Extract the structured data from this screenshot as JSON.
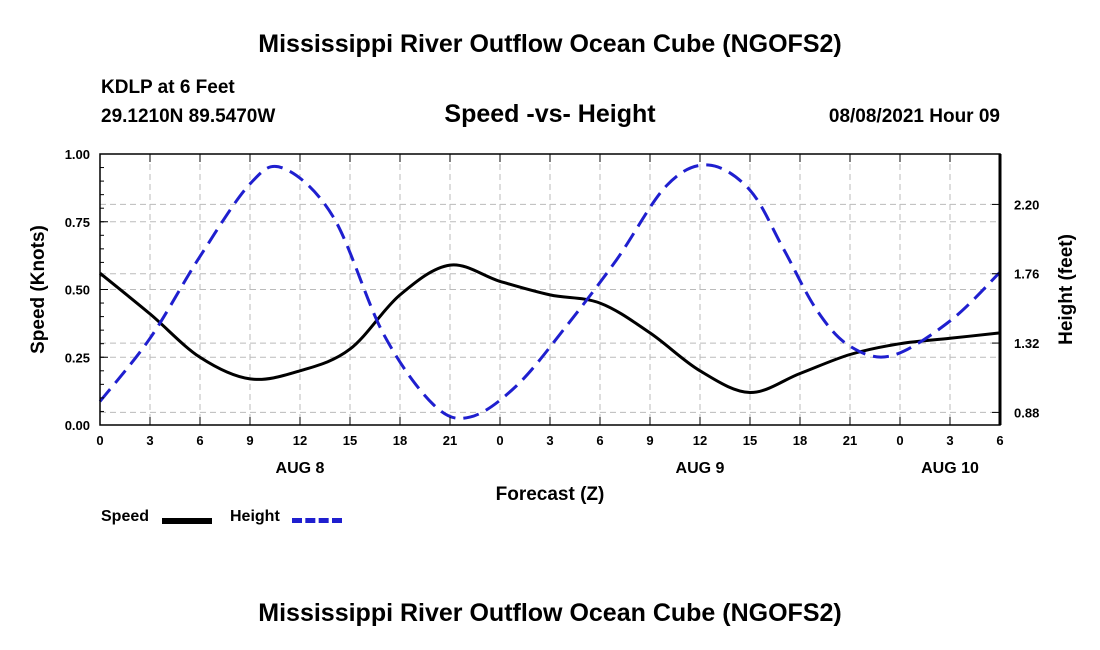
{
  "page_title": "Mississippi River Outflow Ocean Cube (NGOFS2)",
  "station": "KDLP at 6 Feet",
  "coords": "29.1210N  89.5470W",
  "datetime": "08/08/2021 Hour 09",
  "legend": {
    "speed": "Speed",
    "height": "Height"
  },
  "colors": {
    "speed": "#000000",
    "height": "#1f1fcf",
    "grid": "#bbbbbb"
  },
  "chart_data": {
    "type": "line",
    "title": "Speed -vs- Height",
    "xlabel": "Forecast (Z)",
    "ylabel": "Speed (Knots)",
    "y2label": "Height (feet)",
    "x_unit": "hours from 00Z Aug 8",
    "xlim": [
      0,
      54
    ],
    "ylim": [
      0,
      1
    ],
    "y2lim": [
      0.8,
      2.52
    ],
    "x_ticks": [
      0,
      3,
      6,
      9,
      12,
      15,
      18,
      21,
      24,
      27,
      30,
      33,
      36,
      39,
      42,
      45,
      48,
      51,
      54
    ],
    "x_tick_labels": [
      "0",
      "3",
      "6",
      "9",
      "12",
      "15",
      "18",
      "21",
      "0",
      "3",
      "6",
      "9",
      "12",
      "15",
      "18",
      "21",
      "0",
      "3",
      "6"
    ],
    "y_ticks": [
      0,
      0.25,
      0.5,
      0.75,
      1.0
    ],
    "y_tick_labels": [
      "0.00",
      "0.25",
      "0.50",
      "0.75",
      "1.00"
    ],
    "y2_ticks": [
      0.88,
      1.32,
      1.76,
      2.2
    ],
    "y2_tick_labels": [
      "0.88",
      "1.32",
      "1.76",
      "2.20"
    ],
    "day_labels": [
      {
        "x": 12,
        "label": "AUG 8"
      },
      {
        "x": 36,
        "label": "AUG 9"
      },
      {
        "x": 51,
        "label": "AUG 10"
      }
    ],
    "series": [
      {
        "name": "Speed",
        "axis": "left",
        "style": "solid",
        "x": [
          0,
          3,
          6,
          9,
          12,
          15,
          18,
          21,
          24,
          27,
          30,
          33,
          36,
          39,
          42,
          45,
          48,
          51,
          54
        ],
        "values": [
          0.56,
          0.41,
          0.25,
          0.17,
          0.2,
          0.28,
          0.48,
          0.59,
          0.53,
          0.48,
          0.45,
          0.34,
          0.2,
          0.12,
          0.19,
          0.26,
          0.3,
          0.32,
          0.34
        ]
      },
      {
        "name": "Height",
        "axis": "right",
        "style": "dashed",
        "x": [
          0,
          3,
          6,
          9,
          11,
          14,
          17,
          20,
          22.2,
          25,
          28,
          31,
          34,
          36.5,
          39,
          41,
          43,
          45,
          47.5,
          51,
          54
        ],
        "values": [
          0.95,
          1.35,
          1.87,
          2.33,
          2.43,
          2.12,
          1.38,
          0.93,
          0.85,
          1.05,
          1.43,
          1.85,
          2.32,
          2.45,
          2.29,
          1.92,
          1.53,
          1.3,
          1.24,
          1.46,
          1.77
        ]
      }
    ]
  }
}
